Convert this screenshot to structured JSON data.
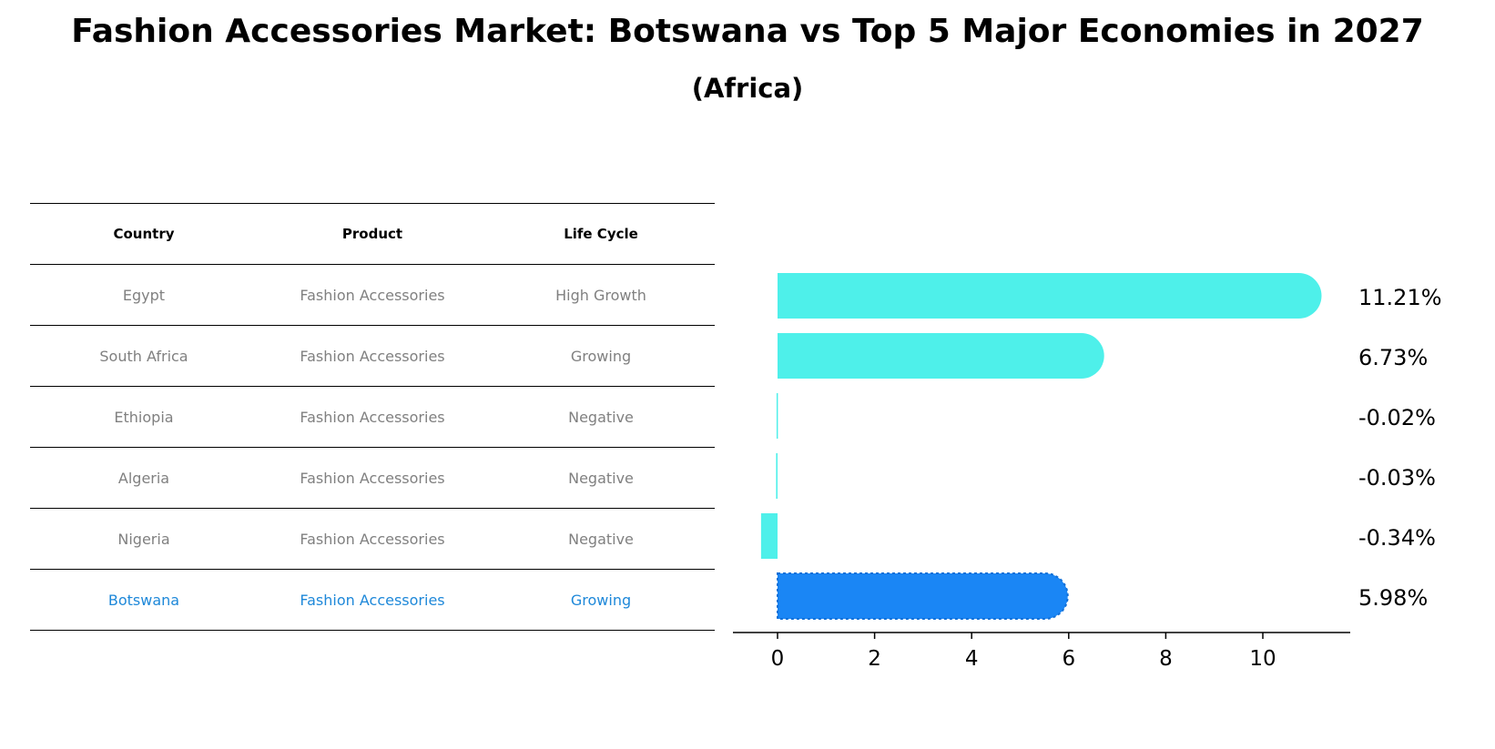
{
  "title": "Fashion Accessories Market: Botswana vs Top 5 Major Economies in 2027",
  "subtitle": "(Africa)",
  "table": {
    "headers": [
      "Country",
      "Product",
      "Life Cycle"
    ],
    "rows": [
      [
        "Egypt",
        "Fashion Accessories",
        "High Growth"
      ],
      [
        "South Africa",
        "Fashion Accessories",
        "Growing"
      ],
      [
        "Ethiopia",
        "Fashion Accessories",
        "Negative"
      ],
      [
        "Algeria",
        "Fashion Accessories",
        "Negative"
      ],
      [
        "Nigeria",
        "Fashion Accessories",
        "Negative"
      ],
      [
        "Botswana",
        "Fashion Accessories",
        "Growing"
      ]
    ]
  },
  "colors": {
    "bar": "#4ef0ea",
    "highlight": "#1a86f5",
    "focus_text": "#1e88d9",
    "text_muted": "#808080"
  },
  "chart_data": {
    "type": "bar",
    "orientation": "horizontal",
    "categories": [
      "Egypt",
      "South Africa",
      "Ethiopia",
      "Algeria",
      "Nigeria",
      "Botswana"
    ],
    "values": [
      11.21,
      6.73,
      -0.02,
      -0.03,
      -0.34,
      5.98
    ],
    "value_labels": [
      "11.21%",
      "6.73%",
      "-0.02%",
      "-0.03%",
      "-0.34%",
      "5.98%"
    ],
    "highlight": "Botswana",
    "xticks": [
      0,
      2,
      4,
      6,
      8,
      10
    ],
    "xlim": [
      -0.9,
      11.8
    ],
    "grid": false
  }
}
